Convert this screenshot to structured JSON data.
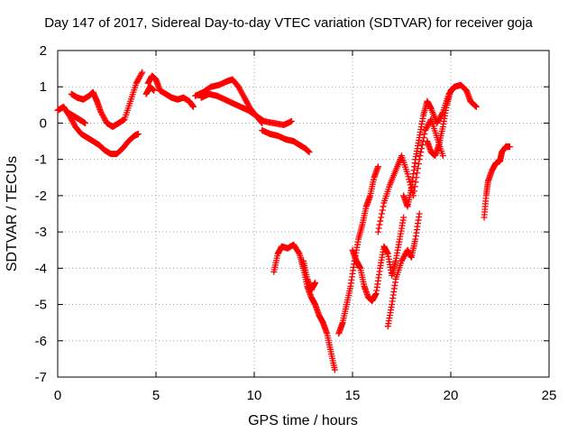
{
  "chart_data": {
    "type": "scatter",
    "title": "Day 147 of 2017, Sidereal Day-to-day VTEC variation (SDTVAR) for receiver goja",
    "xlabel": "GPS time / hours",
    "ylabel": "SDTVAR / TECUs",
    "xlim": [
      0,
      25
    ],
    "ylim": [
      -7,
      2
    ],
    "xticks": [
      "0",
      "5",
      "10",
      "15",
      "20",
      "25"
    ],
    "yticks": [
      "2",
      "1",
      "0",
      "-1",
      "-2",
      "-3",
      "-4",
      "-5",
      "-6",
      "-7"
    ],
    "grid": true,
    "marker": "plus",
    "color": "#ff0000",
    "series": [
      {
        "x": [
          0.0,
          0.3,
          0.6,
          0.9,
          1.2,
          1.5,
          1.8,
          2.1,
          2.4,
          2.7,
          3.0,
          3.3,
          3.6,
          3.9,
          4.1
        ],
        "y": [
          0.35,
          0.45,
          0.2,
          -0.1,
          -0.3,
          -0.4,
          -0.5,
          -0.6,
          -0.75,
          -0.85,
          -0.85,
          -0.7,
          -0.5,
          -0.35,
          -0.3
        ]
      },
      {
        "x": [
          0.7,
          1.0,
          1.3,
          1.6,
          1.8,
          2.0,
          2.2,
          2.5,
          2.8,
          3.1,
          3.4,
          3.7,
          4.0,
          4.3
        ],
        "y": [
          0.8,
          0.7,
          0.65,
          0.75,
          0.85,
          0.6,
          0.3,
          0.0,
          -0.1,
          0.0,
          0.1,
          0.6,
          1.1,
          1.4
        ]
      },
      {
        "x": [
          0.5,
          0.8,
          1.1,
          1.4
        ],
        "y": [
          0.3,
          0.2,
          0.1,
          0.0
        ]
      },
      {
        "x": [
          4.6,
          4.8,
          5.0,
          5.2,
          5.5,
          5.8,
          6.1,
          6.4,
          6.7,
          6.9
        ],
        "y": [
          1.1,
          1.3,
          1.2,
          0.9,
          0.8,
          0.7,
          0.65,
          0.7,
          0.6,
          0.45
        ]
      },
      {
        "x": [
          4.5,
          4.7,
          4.9
        ],
        "y": [
          0.8,
          1.0,
          0.9
        ]
      },
      {
        "x": [
          7.0,
          7.4,
          7.8,
          8.2,
          8.6,
          8.9,
          9.2,
          9.5,
          9.8,
          10.1,
          10.4
        ],
        "y": [
          0.75,
          0.85,
          1.0,
          1.05,
          1.15,
          1.2,
          1.0,
          0.7,
          0.4,
          0.2,
          0.0
        ]
      },
      {
        "x": [
          7.3,
          7.7,
          8.1,
          8.5,
          8.9,
          9.3,
          9.7,
          10.1,
          10.5,
          11.0,
          11.5,
          11.9
        ],
        "y": [
          0.7,
          0.8,
          0.75,
          0.65,
          0.55,
          0.45,
          0.35,
          0.2,
          0.05,
          0.0,
          -0.05,
          0.05
        ]
      },
      {
        "x": [
          10.4,
          10.8,
          11.2,
          11.6,
          12.0,
          12.3,
          12.6,
          12.8
        ],
        "y": [
          -0.2,
          -0.3,
          -0.35,
          -0.45,
          -0.5,
          -0.6,
          -0.7,
          -0.8
        ]
      },
      {
        "x": [
          11.0,
          11.2,
          11.4,
          11.7,
          12.0,
          12.3,
          12.5,
          12.7,
          12.9,
          13.1,
          13.3,
          13.5,
          13.7,
          13.9,
          14.1
        ],
        "y": [
          -4.1,
          -3.6,
          -3.4,
          -3.45,
          -3.35,
          -3.6,
          -4.0,
          -4.5,
          -4.8,
          -5.0,
          -5.3,
          -5.5,
          -5.8,
          -6.3,
          -6.8
        ]
      },
      {
        "x": [
          12.5,
          12.7,
          12.9,
          13.1
        ],
        "y": [
          -3.8,
          -4.3,
          -4.6,
          -4.4
        ]
      },
      {
        "x": [
          14.3,
          14.5,
          14.7,
          14.9,
          15.1,
          15.3,
          15.5,
          15.7,
          15.9,
          16.1,
          16.3
        ],
        "y": [
          -5.8,
          -5.5,
          -5.0,
          -4.5,
          -3.8,
          -3.2,
          -2.8,
          -2.3,
          -2.0,
          -1.5,
          -1.2
        ]
      },
      {
        "x": [
          15.0,
          15.2,
          15.4,
          15.6,
          15.8,
          16.0,
          16.2,
          16.4,
          16.6,
          16.8,
          17.0,
          17.2,
          17.4,
          17.6
        ],
        "y": [
          -3.5,
          -3.8,
          -4.0,
          -4.5,
          -4.8,
          -4.9,
          -4.7,
          -4.0,
          -3.4,
          -3.6,
          -4.2,
          -3.8,
          -3.2,
          -2.6
        ]
      },
      {
        "x": [
          16.3,
          16.6,
          16.9,
          17.2,
          17.5,
          17.8,
          18.1,
          18.4,
          18.7,
          19.0,
          19.3,
          19.6
        ],
        "y": [
          -3.0,
          -2.2,
          -1.7,
          -1.3,
          -0.9,
          -1.4,
          -2.0,
          -1.0,
          -0.2,
          0.1,
          -0.4,
          -0.9
        ]
      },
      {
        "x": [
          16.8,
          17.0,
          17.2,
          17.5,
          17.8,
          18.0,
          18.2,
          18.4
        ],
        "y": [
          -5.6,
          -5.0,
          -4.3,
          -3.8,
          -3.5,
          -3.7,
          -3.2,
          -2.5
        ]
      },
      {
        "x": [
          17.6,
          17.8,
          18.0,
          18.2,
          18.4,
          18.6,
          18.8,
          19.0,
          19.3,
          19.6,
          19.9,
          20.2,
          20.5,
          20.8,
          21.0,
          21.3
        ],
        "y": [
          -2.0,
          -2.3,
          -1.8,
          -1.0,
          -0.4,
          0.2,
          0.6,
          0.4,
          0.0,
          0.3,
          0.8,
          1.0,
          1.05,
          0.9,
          0.6,
          0.45
        ]
      },
      {
        "x": [
          18.8,
          19.0,
          19.2,
          19.4,
          19.6,
          19.8,
          20.0,
          20.2
        ],
        "y": [
          -0.5,
          -0.8,
          -0.9,
          -0.6,
          -0.1,
          0.5,
          0.9,
          1.0
        ]
      },
      {
        "x": [
          21.7,
          21.8,
          21.9,
          22.1,
          22.3,
          22.5,
          22.6,
          22.8,
          23.0
        ],
        "y": [
          -2.6,
          -2.0,
          -1.6,
          -1.3,
          -1.1,
          -1.05,
          -0.8,
          -0.65,
          -0.65
        ]
      }
    ]
  }
}
